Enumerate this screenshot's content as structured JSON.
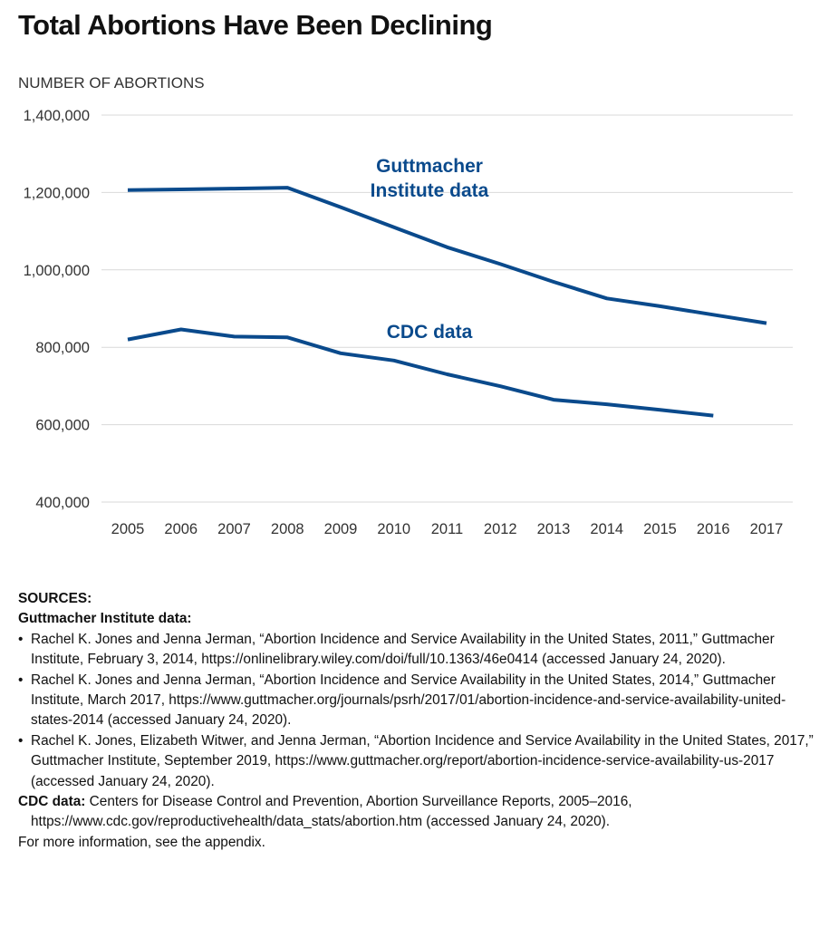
{
  "title": "Total Abortions Have Been Declining",
  "chart_data": {
    "type": "line",
    "title": "Total Abortions Have Been Declining",
    "ylabel": "NUMBER OF ABORTIONS",
    "xlabel": "",
    "ylim": [
      400000,
      1400000
    ],
    "y_ticks": [
      "400,000",
      "600,000",
      "800,000",
      "1,000,000",
      "1,200,000",
      "1,400,000"
    ],
    "y_tick_values": [
      400000,
      600000,
      800000,
      1000000,
      1200000,
      1400000
    ],
    "x": [
      "2005",
      "2006",
      "2007",
      "2008",
      "2009",
      "2010",
      "2011",
      "2012",
      "2013",
      "2014",
      "2015",
      "2016",
      "2017"
    ],
    "grid": "horizontal",
    "series": [
      {
        "name": "Guttmacher Institute data",
        "label_lines": [
          "Guttmacher",
          "Institute data"
        ],
        "color": "#0a4a8c",
        "values": [
          1206200,
          1208000,
          1210000,
          1212400,
          1162000,
          1110000,
          1058500,
          1015000,
          969000,
          926200,
          906000,
          884000,
          862300
        ]
      },
      {
        "name": "CDC data",
        "label_lines": [
          "CDC data"
        ],
        "color": "#0a4a8c",
        "values": [
          820200,
          846200,
          827600,
          825600,
          784500,
          765700,
          730300,
          699200,
          664400,
          652600,
          638200,
          623500,
          null
        ]
      }
    ]
  },
  "sources": {
    "heading": "SOURCES:",
    "guttmacher_heading": "Guttmacher Institute data:",
    "bullet": "•",
    "items": [
      "Rachel K. Jones and Jenna Jerman, “Abortion Incidence and Service Availability in the United States, 2011,” Guttmacher Institute, February 3, 2014, https://onlinelibrary.wiley.com/doi/full/10.1363/46e0414 (accessed January 24, 2020).",
      "Rachel K. Jones and Jenna Jerman, “Abortion Incidence and Service Availability in the United States, 2014,” Guttmacher Institute, March 2017, https://www.guttmacher.org/journals/psrh/2017/01/abortion-incidence-and-service-availability-united-states-2014 (accessed January 24, 2020).",
      "Rachel K. Jones, Elizabeth Witwer, and Jenna Jerman, “Abortion Incidence and Service Availability in the United States, 2017,” Guttmacher Institute, September 2019, https://www.guttmacher.org/report/abortion-incidence-service-availability-us-2017 (accessed January 24, 2020)."
    ],
    "cdc_label": "CDC data:",
    "cdc_text": " Centers for Disease Control and Prevention, Abortion Surveillance Reports, 2005–2016, https://www.cdc.gov/reproductivehealth/data_stats/abortion.htm (accessed January 24, 2020).",
    "footer": "For more information, see the appendix."
  }
}
